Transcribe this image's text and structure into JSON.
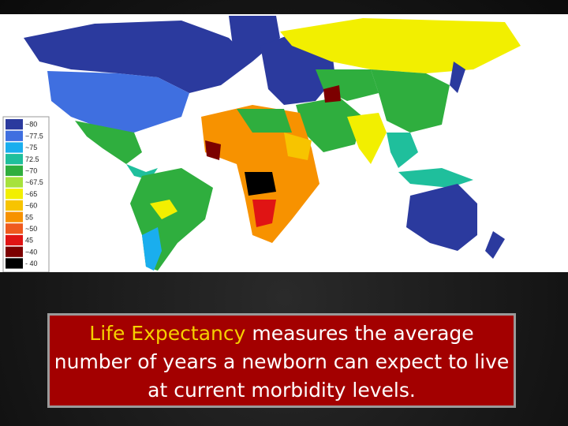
{
  "legend": [
    {
      "label": "~80",
      "color": "#2b3a9e"
    },
    {
      "label": "~77.5",
      "color": "#3f6fe0"
    },
    {
      "label": "~75",
      "color": "#1aaeee"
    },
    {
      "label": "72.5",
      "color": "#1fbf9c"
    },
    {
      "label": "~70",
      "color": "#2fae3e"
    },
    {
      "label": "~67.5",
      "color": "#a6e23c"
    },
    {
      "label": "~65",
      "color": "#f2ef00"
    },
    {
      "label": "~60",
      "color": "#f7c400"
    },
    {
      "label": "55",
      "color": "#f79200"
    },
    {
      "label": "~50",
      "color": "#ef5a1e"
    },
    {
      "label": "45",
      "color": "#e01414"
    },
    {
      "label": "~40",
      "color": "#7c0000"
    },
    {
      "label": "- 40",
      "color": "#000000"
    }
  ],
  "caption": {
    "highlight": "Life Expectancy",
    "rest": " measures the average number of years a newborn can expect to live at current morbidity levels."
  }
}
